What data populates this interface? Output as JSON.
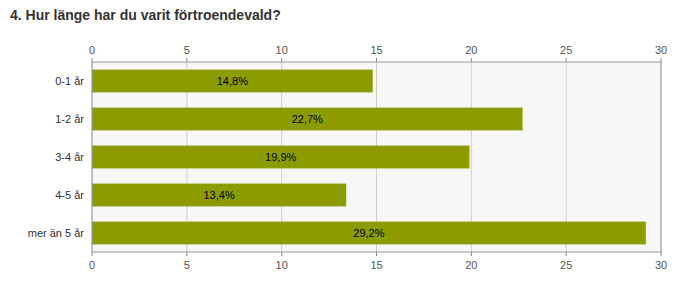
{
  "chart_data": {
    "type": "bar",
    "orientation": "horizontal",
    "title": "4. Hur länge har du varit förtroendevald?",
    "categories": [
      "0-1 år",
      "1-2 år",
      "3-4 år",
      "4-5 år",
      "mer än 5 år"
    ],
    "values": [
      14.8,
      22.7,
      19.9,
      13.4,
      29.2
    ],
    "value_labels": [
      "14,8%",
      "22,7%",
      "19,9%",
      "13,4%",
      "29,2%"
    ],
    "data_labels": true,
    "color": "#8B9B00",
    "xlim": [
      0,
      30
    ],
    "xticks": [
      0,
      5,
      10,
      15,
      20,
      25,
      30
    ],
    "grid": true
  }
}
